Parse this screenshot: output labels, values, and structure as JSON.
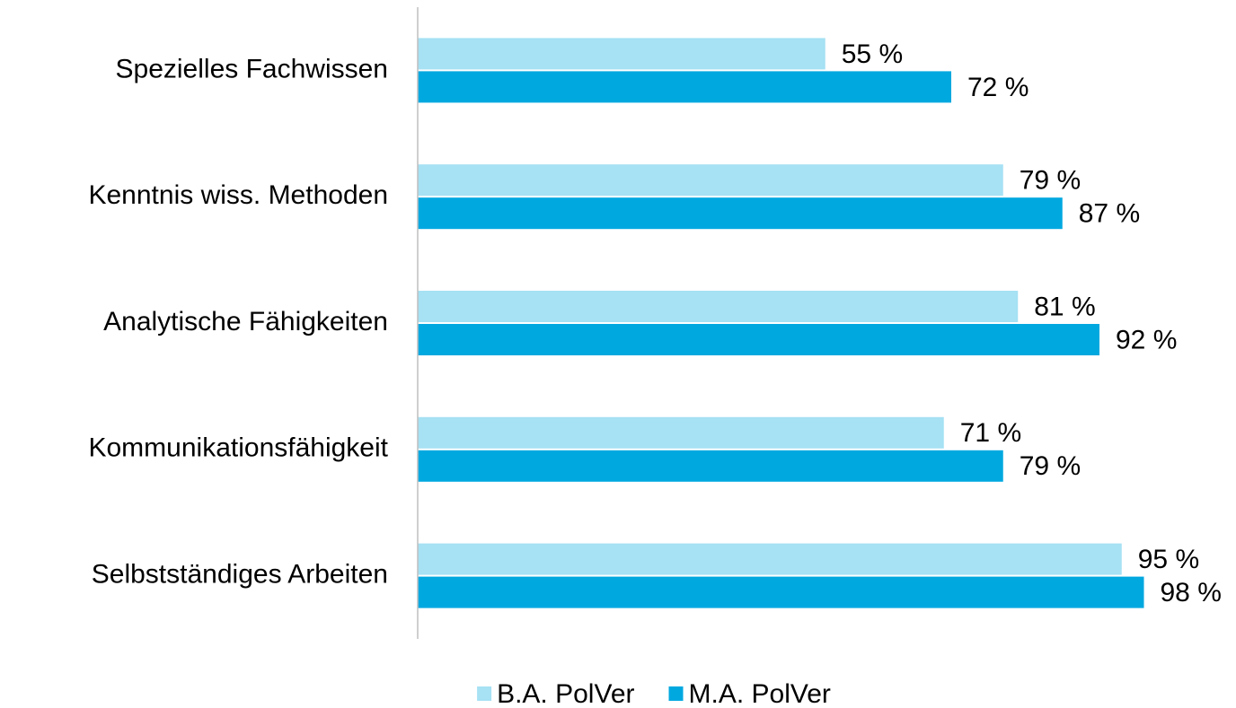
{
  "chart_data": {
    "type": "bar",
    "orientation": "horizontal",
    "categories": [
      "Spezielles Fachwissen",
      "Kenntnis wiss. Methoden",
      "Analytische Fähigkeiten",
      "Kommunikationsfähigkeit",
      "Selbstständiges Arbeiten"
    ],
    "series": [
      {
        "name": "B.A. PolVer",
        "color": "#a6e1f4",
        "values": [
          55,
          79,
          81,
          71,
          95
        ],
        "value_labels": [
          "55 %",
          "79 %",
          "81 %",
          "71 %",
          "95 %"
        ]
      },
      {
        "name": "M.A. PolVer",
        "color": "#00a8e0",
        "values": [
          72,
          87,
          92,
          79,
          98
        ],
        "value_labels": [
          "72 %",
          "87 %",
          "92 %",
          "79 %",
          "98 %"
        ]
      }
    ],
    "xlim": [
      0,
      100
    ],
    "legend": "bottom"
  }
}
